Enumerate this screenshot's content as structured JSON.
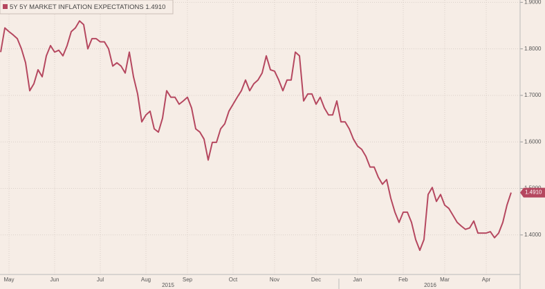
{
  "chart_data": {
    "type": "line",
    "categories": [
      null,
      null,
      "May",
      null,
      null,
      null,
      null,
      null,
      null,
      null,
      null,
      null,
      null,
      "Jun",
      null,
      null,
      null,
      null,
      null,
      null,
      null,
      null,
      null,
      null,
      "Jul",
      null,
      null,
      null,
      null,
      null,
      null,
      null,
      null,
      null,
      null,
      "Aug",
      null,
      null,
      null,
      null,
      null,
      null,
      null,
      null,
      null,
      "Sep",
      null,
      null,
      null,
      null,
      null,
      null,
      null,
      null,
      null,
      null,
      "Oct",
      null,
      null,
      null,
      null,
      null,
      null,
      null,
      null,
      null,
      "Nov",
      null,
      null,
      null,
      null,
      null,
      null,
      null,
      null,
      null,
      "Dec",
      null,
      null,
      null,
      null,
      null,
      null,
      null,
      null,
      null,
      "Jan",
      null,
      null,
      null,
      null,
      null,
      null,
      null,
      null,
      null,
      null,
      "Feb",
      null,
      null,
      null,
      null,
      null,
      null,
      null,
      null,
      null,
      "Mar",
      null,
      null,
      null,
      null,
      null,
      null,
      null,
      null,
      null,
      "Apr",
      null,
      null,
      null,
      null,
      null,
      null
    ],
    "years": [
      "2015",
      "2016"
    ],
    "series": [
      {
        "name": "5Y 5Y MARKET INFLATION EXPECTATIONS",
        "color": "#b5475f",
        "values": [
          1.793,
          1.845,
          1.837,
          1.83,
          1.822,
          1.8,
          1.77,
          1.71,
          1.725,
          1.755,
          1.74,
          1.785,
          1.807,
          1.793,
          1.797,
          1.785,
          1.807,
          1.837,
          1.845,
          1.86,
          1.852,
          1.8,
          1.822,
          1.822,
          1.815,
          1.815,
          1.8,
          1.763,
          1.77,
          1.763,
          1.748,
          1.793,
          1.74,
          1.703,
          1.643,
          1.658,
          1.666,
          1.628,
          1.621,
          1.651,
          1.71,
          1.696,
          1.696,
          1.681,
          1.688,
          1.696,
          1.673,
          1.628,
          1.621,
          1.606,
          1.561,
          1.599,
          1.599,
          1.628,
          1.639,
          1.666,
          1.681,
          1.696,
          1.71,
          1.733,
          1.71,
          1.725,
          1.733,
          1.748,
          1.785,
          1.755,
          1.752,
          1.733,
          1.71,
          1.733,
          1.733,
          1.793,
          1.785,
          1.688,
          1.703,
          1.703,
          1.681,
          1.696,
          1.673,
          1.658,
          1.658,
          1.688,
          1.643,
          1.643,
          1.628,
          1.606,
          1.591,
          1.584,
          1.569,
          1.546,
          1.546,
          1.524,
          1.509,
          1.519,
          1.479,
          1.449,
          1.427,
          1.449,
          1.449,
          1.427,
          1.39,
          1.367,
          1.39,
          1.487,
          1.502,
          1.472,
          1.487,
          1.464,
          1.457,
          1.442,
          1.427,
          1.419,
          1.412,
          1.415,
          1.43,
          1.404,
          1.404,
          1.404,
          1.407,
          1.394,
          1.404,
          1.427,
          1.464,
          1.491
        ],
        "value_labels": [
          null,
          null,
          null,
          null,
          null,
          null,
          null,
          null,
          null,
          null,
          null,
          null,
          null,
          null,
          null,
          null,
          null,
          null,
          null,
          null,
          null,
          null,
          null,
          null,
          null,
          null,
          null,
          null,
          null,
          null,
          null,
          null,
          null,
          null,
          null,
          null,
          null,
          null,
          null,
          null,
          null,
          null,
          null,
          null,
          null,
          null,
          null,
          null,
          null,
          null,
          null,
          null,
          null,
          null,
          null,
          null,
          null,
          null,
          null,
          null,
          null,
          null,
          null,
          null,
          null,
          null,
          null,
          null,
          null,
          null,
          null,
          null,
          null,
          null,
          null,
          null,
          null,
          null,
          null,
          null,
          null,
          null,
          null,
          null,
          null,
          null,
          null,
          null,
          null,
          null,
          null,
          null,
          null,
          null,
          null,
          null,
          null,
          null,
          null,
          null,
          null,
          null,
          null,
          null,
          null,
          null,
          null,
          null,
          null,
          null,
          null,
          null,
          null,
          null,
          null,
          null,
          null,
          null,
          null,
          null,
          null,
          null,
          null,
          "1.4910"
        ]
      }
    ],
    "ylim": [
      1.315,
      1.905
    ],
    "yticks": [
      {
        "value": 1.4,
        "label": "1.4000"
      },
      {
        "value": 1.5,
        "label": "1.5000"
      },
      {
        "value": 1.6,
        "label": "1.6000"
      },
      {
        "value": 1.7,
        "label": "1.7000"
      },
      {
        "value": 1.8,
        "label": "1.8000"
      },
      {
        "value": 1.9,
        "label": "1.9000"
      }
    ],
    "grid": true
  }
}
